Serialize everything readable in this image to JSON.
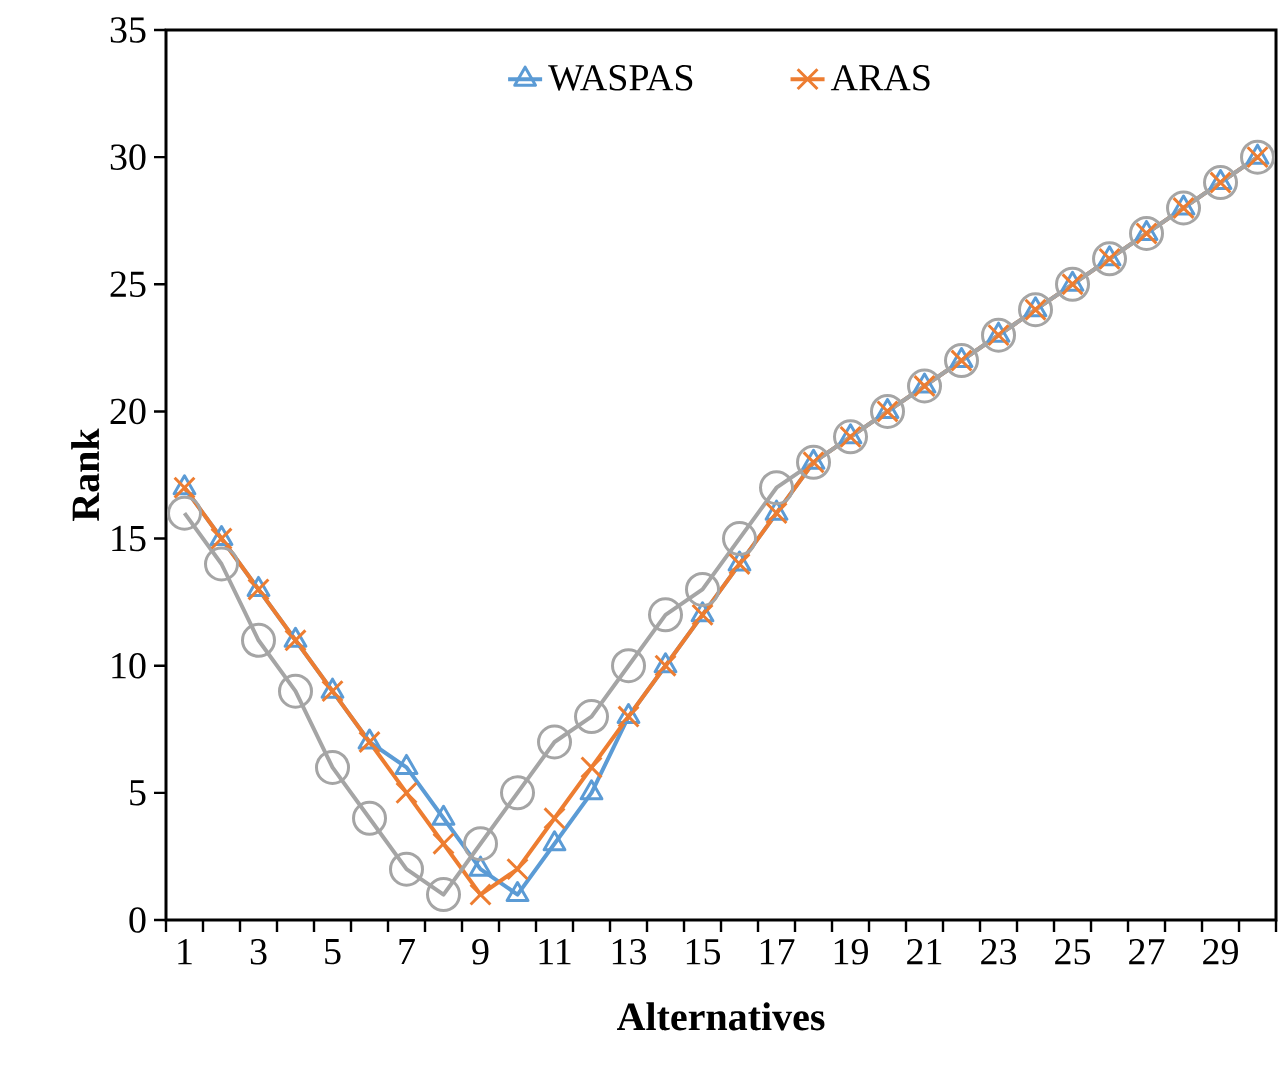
{
  "chart_data": {
    "type": "line",
    "xlabel": "Alternatives",
    "ylabel": "Rank",
    "categories": [
      "1",
      null,
      "3",
      null,
      "5",
      null,
      "7",
      null,
      "9",
      null,
      "11",
      null,
      "13",
      null,
      "15",
      null,
      "17",
      null,
      "19",
      null,
      "21",
      null,
      "23",
      null,
      "25",
      null,
      "27",
      null,
      "29",
      null
    ],
    "ylim": [
      0,
      35
    ],
    "yticks": [
      0,
      5,
      10,
      15,
      20,
      25,
      30,
      35
    ],
    "legend": "top",
    "grid": false,
    "series": [
      {
        "name": "WASPAS",
        "color": "#5b9bd5",
        "marker": "triangle",
        "values": [
          17,
          15,
          13,
          11,
          9,
          7,
          6,
          4,
          2,
          1,
          3,
          5,
          8,
          10,
          12,
          14,
          16,
          18,
          19,
          20,
          21,
          22,
          23,
          24,
          25,
          26,
          27,
          28,
          29,
          30
        ]
      },
      {
        "name": "ARAS",
        "color": "#ed7d31",
        "marker": "cross",
        "values": [
          17,
          15,
          13,
          11,
          9,
          7,
          5,
          3,
          1,
          2,
          4,
          6,
          8,
          10,
          12,
          14,
          16,
          18,
          19,
          20,
          21,
          22,
          23,
          24,
          25,
          26,
          27,
          28,
          29,
          30
        ]
      },
      {
        "color": "#a5a5a5",
        "marker": "circle",
        "values": [
          16,
          14,
          11,
          9,
          6,
          4,
          2,
          1,
          3,
          5,
          7,
          8,
          10,
          12,
          13,
          15,
          17,
          18,
          19,
          20,
          21,
          22,
          23,
          24,
          25,
          26,
          27,
          28,
          29,
          30
        ]
      }
    ]
  }
}
